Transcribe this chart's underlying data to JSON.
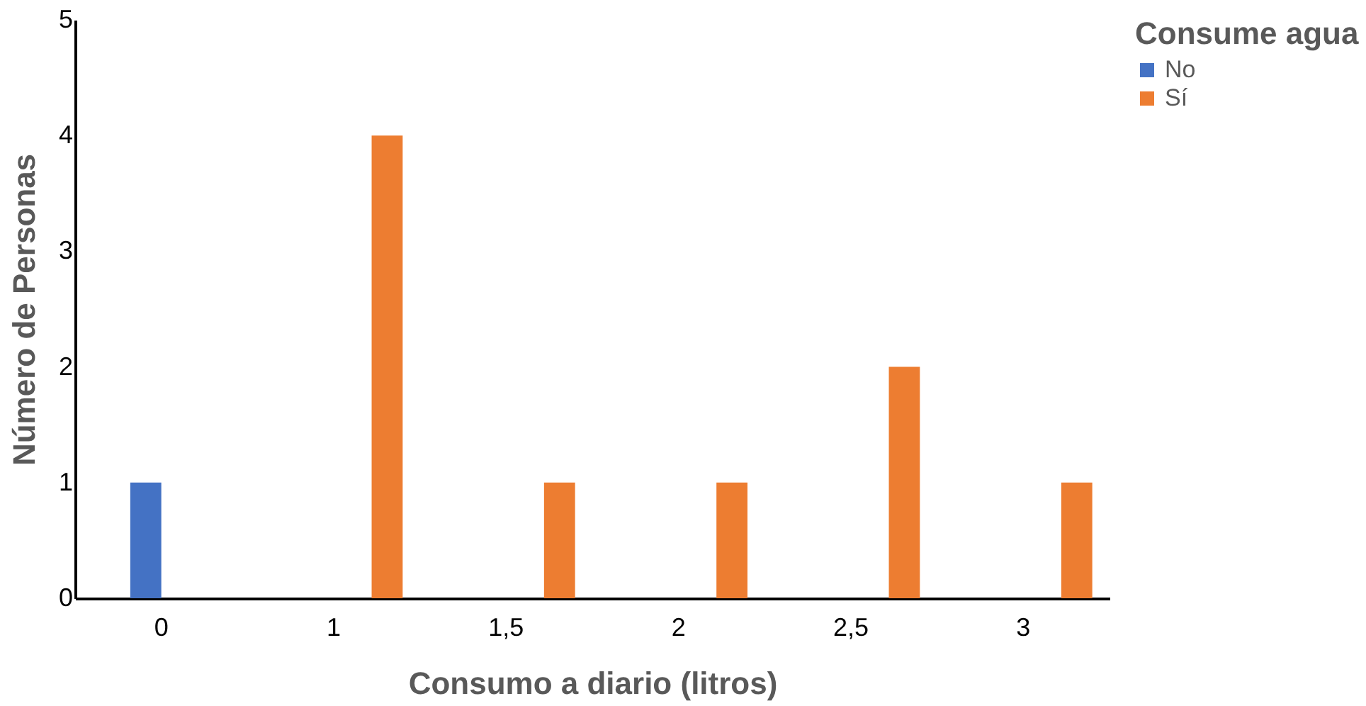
{
  "chart_data": {
    "type": "bar",
    "xlabel": "Consumo a diario (litros)",
    "ylabel": "Número de Personas",
    "legend_title": "Consume agua",
    "categories": [
      "0",
      "1",
      "1,5",
      "2",
      "2,5",
      "3"
    ],
    "series": [
      {
        "name": "No",
        "color": "#4472c4",
        "values": [
          1,
          null,
          null,
          null,
          null,
          null
        ]
      },
      {
        "name": "Sí",
        "color": "#ed7d31",
        "values": [
          null,
          4,
          1,
          1,
          2,
          1
        ]
      }
    ],
    "ylim": [
      0,
      5
    ],
    "yticks": [
      0,
      1,
      2,
      3,
      4,
      5
    ],
    "grid": false,
    "legend": "right"
  }
}
